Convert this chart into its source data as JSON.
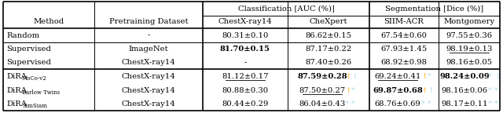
{
  "title_row2": [
    "Method",
    "Pretraining Dataset",
    "ChestX-ray14",
    "CheXpert",
    "SIIM-ACR",
    "Montgomery"
  ],
  "rows": [
    {
      "method": "Random",
      "method_sub": "",
      "pretrain": "-",
      "chestxray14": "80.31±0.10",
      "chexpert": "86.62±0.15",
      "siim": "67.54±0.60",
      "montgomery": "97.55±0.36",
      "chestxray14_bold": false,
      "chexpert_bold": false,
      "siim_bold": false,
      "montgomery_bold": false,
      "chestxray14_underline": false,
      "chexpert_underline": false,
      "siim_underline": false,
      "montgomery_underline": false,
      "chexpert_arrows": [],
      "siim_arrows": [],
      "montgomery_arrows": [],
      "group": "random"
    },
    {
      "method": "Supervised",
      "method_sub": "",
      "pretrain": "ImageNet",
      "chestxray14": "81.70±0.15",
      "chexpert": "87.17±0.22",
      "siim": "67.93±1.45",
      "montgomery": "98.19±0.13",
      "chestxray14_bold": true,
      "chexpert_bold": false,
      "siim_bold": false,
      "montgomery_bold": false,
      "chestxray14_underline": false,
      "chexpert_underline": false,
      "siim_underline": false,
      "montgomery_underline": true,
      "chexpert_arrows": [],
      "siim_arrows": [],
      "montgomery_arrows": [],
      "group": "supervised"
    },
    {
      "method": "Supervised",
      "method_sub": "",
      "pretrain": "ChestX-ray14",
      "chestxray14": "-",
      "chexpert": "87.40±0.26",
      "siim": "68.92±0.98",
      "montgomery": "98.16±0.05",
      "chestxray14_bold": false,
      "chexpert_bold": false,
      "siim_bold": false,
      "montgomery_bold": false,
      "chestxray14_underline": false,
      "chexpert_underline": false,
      "siim_underline": false,
      "montgomery_underline": false,
      "chexpert_arrows": [],
      "siim_arrows": [],
      "montgomery_arrows": [],
      "group": "supervised"
    },
    {
      "method": "DiRA",
      "method_sub": "MoCo-v2",
      "pretrain": "ChestX-ray14",
      "chestxray14": "81.12±0.17",
      "chexpert": "87.59±0.28",
      "siim": "69.24±0.41",
      "montgomery": "98.24±0.09",
      "chestxray14_bold": false,
      "chexpert_bold": true,
      "siim_bold": false,
      "montgomery_bold": true,
      "chestxray14_underline": true,
      "chexpert_underline": false,
      "siim_underline": true,
      "montgomery_underline": false,
      "chexpert_arrows": [
        "↑",
        "orange",
        "↑",
        "lightblue"
      ],
      "siim_arrows": [
        "↑",
        "orange",
        "*",
        "lightblue"
      ],
      "montgomery_arrows": [
        "*",
        "lightblue",
        "↑",
        "lightblue"
      ],
      "group": "dira"
    },
    {
      "method": "DiRA",
      "method_sub": "Barlow Twins",
      "pretrain": "ChestX-ray14",
      "chestxray14": "80.88±0.30",
      "chexpert": "87.50±0.27",
      "siim": "69.87±0.68",
      "montgomery": "98.16±0.06",
      "chestxray14_bold": false,
      "chexpert_bold": false,
      "siim_bold": true,
      "montgomery_bold": false,
      "chestxray14_underline": false,
      "chexpert_underline": true,
      "siim_underline": false,
      "montgomery_underline": false,
      "chexpert_arrows": [
        "↑",
        "orange",
        "*",
        "lightblue"
      ],
      "siim_arrows": [
        "↑",
        "orange",
        "↑",
        "lightblue"
      ],
      "montgomery_arrows": [
        "*",
        "lightblue",
        "*",
        "lightblue"
      ],
      "group": "dira"
    },
    {
      "method": "DiRA",
      "method_sub": "SimSiam",
      "pretrain": "ChestX-ray14",
      "chestxray14": "80.44±0.29",
      "chexpert": "86.04±0.43",
      "siim": "68.76±0.69",
      "montgomery": "98.17±0.11",
      "chestxray14_bold": false,
      "chexpert_bold": false,
      "siim_bold": false,
      "montgomery_bold": false,
      "chestxray14_underline": false,
      "chexpert_underline": false,
      "siim_underline": false,
      "montgomery_underline": false,
      "chexpert_arrows": [
        "*",
        "lightblue",
        "*",
        "lightblue"
      ],
      "siim_arrows": [
        "*",
        "lightblue",
        "*",
        "lightblue"
      ],
      "montgomery_arrows": [
        "*",
        "lightblue",
        "*",
        "lightblue"
      ],
      "group": "dira"
    }
  ],
  "fig_width": 6.4,
  "fig_height": 1.58,
  "dpi": 100,
  "bg_color": "#ffffff",
  "line_color": "#000000",
  "font_size": 7.2,
  "sub_font_size": 5.0,
  "arrow_font_size": 6.5
}
